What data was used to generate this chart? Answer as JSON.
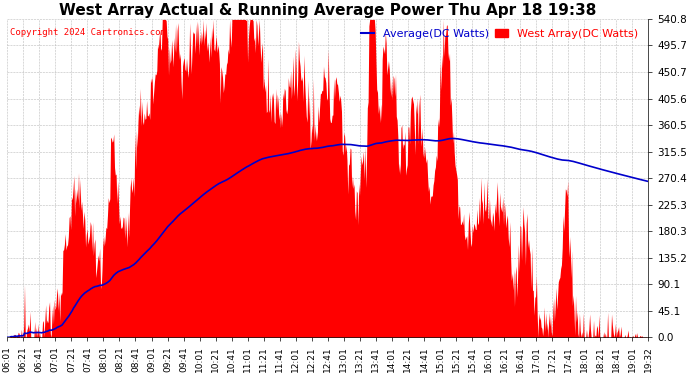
{
  "title": "West Array Actual & Running Average Power Thu Apr 18 19:38",
  "copyright": "Copyright 2024 Cartronics.com",
  "legend_avg": "Average(DC Watts)",
  "legend_west": "West Array(DC Watts)",
  "ymax": 540.8,
  "ymin": 0.0,
  "yticks": [
    0.0,
    45.1,
    90.1,
    135.2,
    180.3,
    225.3,
    270.4,
    315.5,
    360.5,
    405.6,
    450.7,
    495.7,
    540.8
  ],
  "ytick_labels": [
    "0.0",
    "45.1",
    "90.1",
    "135.2",
    "180.3",
    "225.3",
    "270.4",
    "315.5",
    "360.5",
    "405.6",
    "450.7",
    "495.7",
    "540.8"
  ],
  "xtick_labels": [
    "06:01",
    "06:21",
    "06:41",
    "07:01",
    "07:21",
    "07:41",
    "08:01",
    "08:21",
    "08:41",
    "09:01",
    "09:21",
    "09:41",
    "10:01",
    "10:21",
    "10:41",
    "11:01",
    "11:21",
    "11:41",
    "12:01",
    "12:21",
    "12:41",
    "13:01",
    "13:21",
    "13:41",
    "14:01",
    "14:21",
    "14:41",
    "15:01",
    "15:21",
    "15:41",
    "16:01",
    "16:21",
    "16:41",
    "17:01",
    "17:21",
    "17:41",
    "18:01",
    "18:21",
    "18:41",
    "19:01",
    "19:32"
  ],
  "fill_color": "#ff0000",
  "line_color": "#0000cc",
  "title_color": "#000000",
  "copyright_color": "#ff0000",
  "legend_avg_color": "#0000cc",
  "legend_west_color": "#ff0000",
  "background_color": "#ffffff",
  "grid_color": "#bbbbbb",
  "title_fontsize": 11,
  "copyright_fontsize": 6.5,
  "legend_fontsize": 8,
  "ytick_fontsize": 7.5,
  "xtick_fontsize": 6.5
}
